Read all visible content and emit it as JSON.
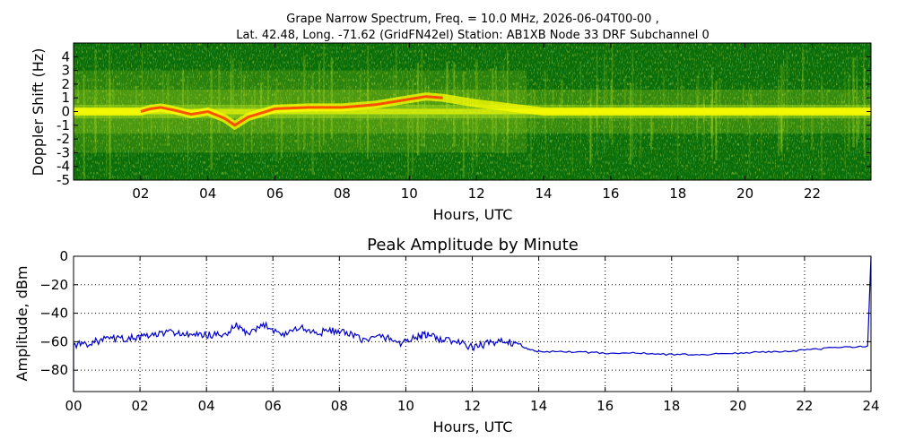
{
  "header": {
    "title_line1": "Grape Narrow Spectrum, Freq. = 10.0 MHz, 2026-06-04T00-00 ,",
    "title_line2": "Lat.  42.48, Long. -71.62 (GridFN42el) Station: AB1XB Node 33 DRF Subchannel 0"
  },
  "chart_data": [
    {
      "type": "heatmap",
      "title": "",
      "xlabel": "Hours, UTC",
      "ylabel": "Doppler Shift (Hz)",
      "xlim": [
        0,
        23.75
      ],
      "ylim": [
        -5,
        5
      ],
      "xticks": [
        "02",
        "04",
        "06",
        "08",
        "10",
        "12",
        "14",
        "16",
        "18",
        "20",
        "22"
      ],
      "xtick_values": [
        2,
        4,
        6,
        8,
        10,
        12,
        14,
        16,
        18,
        20,
        22
      ],
      "yticks": [
        "4",
        "3",
        "2",
        "1",
        "0",
        "-1",
        "-2",
        "-3",
        "-4",
        "-5"
      ],
      "ytick_values": [
        4,
        3,
        2,
        1,
        0,
        -1,
        -2,
        -3,
        -4,
        -5
      ],
      "colors": {
        "background": "#0a6e0a",
        "mid": "#b4e01e",
        "high": "#ffff00",
        "peak": "#ff2a00"
      },
      "carrier_trace": {
        "hours": [
          0,
          1,
          2,
          2.3,
          2.6,
          3,
          3.5,
          4,
          4.5,
          4.8,
          5.2,
          6,
          7,
          8,
          9,
          10,
          10.5,
          11,
          12,
          13,
          14,
          16,
          18,
          20,
          22,
          23.75
        ],
        "hz": [
          0,
          0,
          0,
          0.2,
          0.3,
          0.1,
          -0.2,
          0,
          -0.5,
          -1,
          -0.4,
          0.2,
          0.3,
          0.3,
          0.5,
          0.9,
          1.1,
          1,
          0.6,
          0.3,
          0,
          0,
          0,
          0,
          0,
          0
        ]
      }
    },
    {
      "type": "line",
      "title": "Peak Amplitude by Minute",
      "xlabel": "Hours, UTC",
      "ylabel": "Amplitude, dBm",
      "xlim": [
        0,
        24
      ],
      "ylim": [
        -95,
        0
      ],
      "grid": true,
      "line_color": "#0000cc",
      "xticks": [
        "00",
        "02",
        "04",
        "06",
        "08",
        "10",
        "12",
        "14",
        "16",
        "18",
        "20",
        "22",
        "24"
      ],
      "xtick_values": [
        0,
        2,
        4,
        6,
        8,
        10,
        12,
        14,
        16,
        18,
        20,
        22,
        24
      ],
      "yticks": [
        "0",
        "−20",
        "−40",
        "−60",
        "−80"
      ],
      "ytick_values": [
        0,
        -20,
        -40,
        -60,
        -80
      ],
      "series": [
        {
          "x": [
            0,
            0.5,
            1,
            1.5,
            2,
            2.5,
            3,
            3.5,
            4,
            4.5,
            4.9,
            5.3,
            5.75,
            6.3,
            6.8,
            7.3,
            7.8,
            8.3,
            8.8,
            9.3,
            9.8,
            10.3,
            10.6,
            11,
            11.5,
            12,
            12.5,
            13,
            13.5,
            14,
            15,
            16,
            17,
            18,
            19,
            20,
            21,
            22,
            23,
            23.9
          ],
          "y": [
            -62,
            -61,
            -58,
            -58,
            -57,
            -55,
            -53,
            -56,
            -55,
            -56,
            -49,
            -55,
            -48,
            -55,
            -50,
            -54,
            -52,
            -55,
            -59,
            -56,
            -61,
            -57,
            -55,
            -58,
            -60,
            -64,
            -61,
            -59,
            -64,
            -67,
            -67,
            -68,
            -68,
            -69,
            -69,
            -68,
            -67,
            -66,
            -64,
            -63
          ]
        }
      ]
    }
  ]
}
